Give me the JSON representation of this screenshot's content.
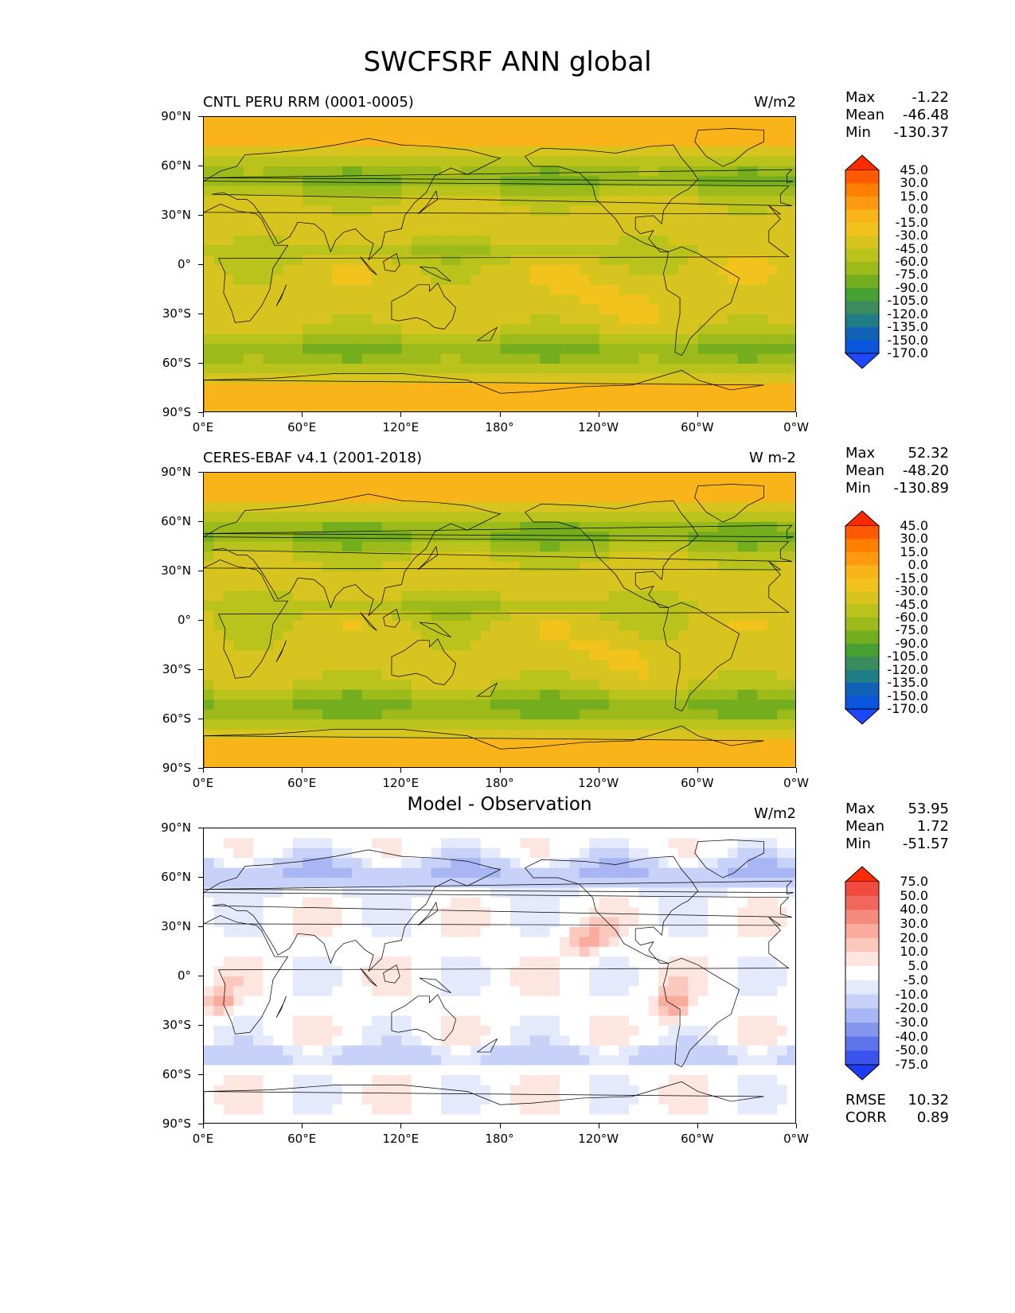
{
  "title": "SWCFSRF ANN global",
  "lat_labels": [
    "90°N",
    "60°N",
    "30°N",
    "0°",
    "30°S",
    "60°S",
    "90°S"
  ],
  "lon_labels": [
    "0°E",
    "60°E",
    "120°E",
    "180°",
    "120°W",
    "60°W",
    "0°W"
  ],
  "panels": [
    {
      "title": "CNTL PERU RRM (0001-0005)",
      "units": "W/m2",
      "stats": {
        "max_label": "Max",
        "max": "-1.22",
        "mean_label": "Mean",
        "mean": "-46.48",
        "min_label": "Min",
        "min": "-130.37"
      },
      "colorbar": {
        "labels": [
          "45.0",
          "30.0",
          "15.0",
          "0.0",
          "-15.0",
          "-30.0",
          "-45.0",
          "-60.0",
          "-75.0",
          "-90.0",
          "-105.0",
          "-120.0",
          "-135.0",
          "-150.0",
          "-170.0"
        ],
        "colors": [
          "#ff2a00",
          "#ff5a00",
          "#ff8000",
          "#ff9a10",
          "#f9b41a",
          "#f1c31c",
          "#d7c41e",
          "#bac21c",
          "#9cbb1a",
          "#74ad1e",
          "#47a132",
          "#3a8c5c",
          "#1f7d86",
          "#1162b6",
          "#0a55dd",
          "#1d48ff"
        ]
      },
      "footer": null,
      "diff": false
    },
    {
      "title": "CERES-EBAF v4.1 (2001-2018)",
      "units": "W m-2",
      "stats": {
        "max_label": "Max",
        "max": "52.32",
        "mean_label": "Mean",
        "mean": "-48.20",
        "min_label": "Min",
        "min": "-130.89"
      },
      "colorbar": {
        "labels": [
          "45.0",
          "30.0",
          "15.0",
          "0.0",
          "-15.0",
          "-30.0",
          "-45.0",
          "-60.0",
          "-75.0",
          "-90.0",
          "-105.0",
          "-120.0",
          "-135.0",
          "-150.0",
          "-170.0"
        ],
        "colors": [
          "#ff2a00",
          "#ff5a00",
          "#ff8000",
          "#ff9a10",
          "#f9b41a",
          "#f1c31c",
          "#d7c41e",
          "#bac21c",
          "#9cbb1a",
          "#74ad1e",
          "#47a132",
          "#3a8c5c",
          "#1f7d86",
          "#1162b6",
          "#0a55dd",
          "#1d48ff"
        ]
      },
      "footer": null,
      "diff": false
    },
    {
      "title": "Model - Observation",
      "units": "W/m2",
      "stats": {
        "max_label": "Max",
        "max": "53.95",
        "mean_label": "Mean",
        "mean": "1.72",
        "min_label": "Min",
        "min": "-51.57"
      },
      "colorbar": {
        "labels": [
          "75.0",
          "50.0",
          "40.0",
          "30.0",
          "20.0",
          "10.0",
          "5.0",
          "-5.0",
          "-10.0",
          "-20.0",
          "-30.0",
          "-40.0",
          "-50.0",
          "-75.0"
        ],
        "colors": [
          "#ff2a00",
          "#f24a3e",
          "#f0685c",
          "#f58a7d",
          "#f9ab9e",
          "#fbc8bd",
          "#fde6e0",
          "#ffffff",
          "#e4e9fb",
          "#c8d1f7",
          "#a8b6f3",
          "#8596ee",
          "#5e74ea",
          "#3b54ee",
          "#1d3af5"
        ]
      },
      "footer": {
        "rmse_label": "RMSE",
        "rmse": "10.32",
        "corr_label": "CORR",
        "corr": "0.89"
      },
      "diff": true
    }
  ]
}
